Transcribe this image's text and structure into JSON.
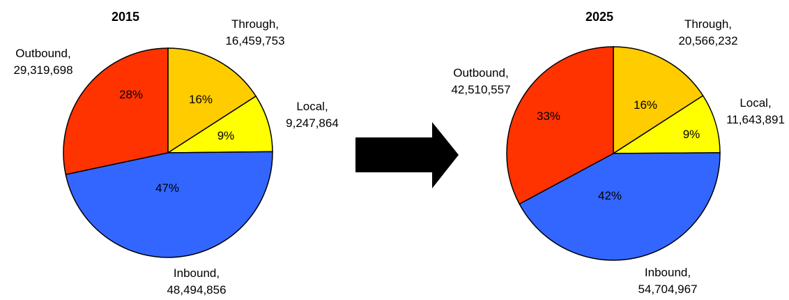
{
  "chart_data": [
    {
      "type": "pie",
      "title": "2015",
      "slices": [
        {
          "name": "Through",
          "value": 16459753,
          "value_label": "16,459,753",
          "pct_label": "16%",
          "color": "#FFCC00"
        },
        {
          "name": "Local",
          "value": 9247864,
          "value_label": "9,247,864",
          "pct_label": "9%",
          "color": "#FFFF00"
        },
        {
          "name": "Inbound",
          "value": 48494856,
          "value_label": "48,494,856",
          "pct_label": "47%",
          "color": "#3366FF"
        },
        {
          "name": "Outbound",
          "value": 29319698,
          "value_label": "29,319,698",
          "pct_label": "28%",
          "color": "#FF3300"
        }
      ]
    },
    {
      "type": "pie",
      "title": "2025",
      "slices": [
        {
          "name": "Through",
          "value": 20566232,
          "value_label": "20,566,232",
          "pct_label": "16%",
          "color": "#FFCC00"
        },
        {
          "name": "Local",
          "value": 11643891,
          "value_label": "11,643,891",
          "pct_label": "9%",
          "color": "#FFFF00"
        },
        {
          "name": "Inbound",
          "value": 54704967,
          "value_label": "54,704,967",
          "pct_label": "42%",
          "color": "#3366FF"
        },
        {
          "name": "Outbound",
          "value": 42510557,
          "value_label": "42,510,557",
          "pct_label": "33%",
          "color": "#FF3300"
        }
      ]
    }
  ],
  "arrow": {
    "icon": "right-arrow-icon",
    "color": "#000000"
  }
}
